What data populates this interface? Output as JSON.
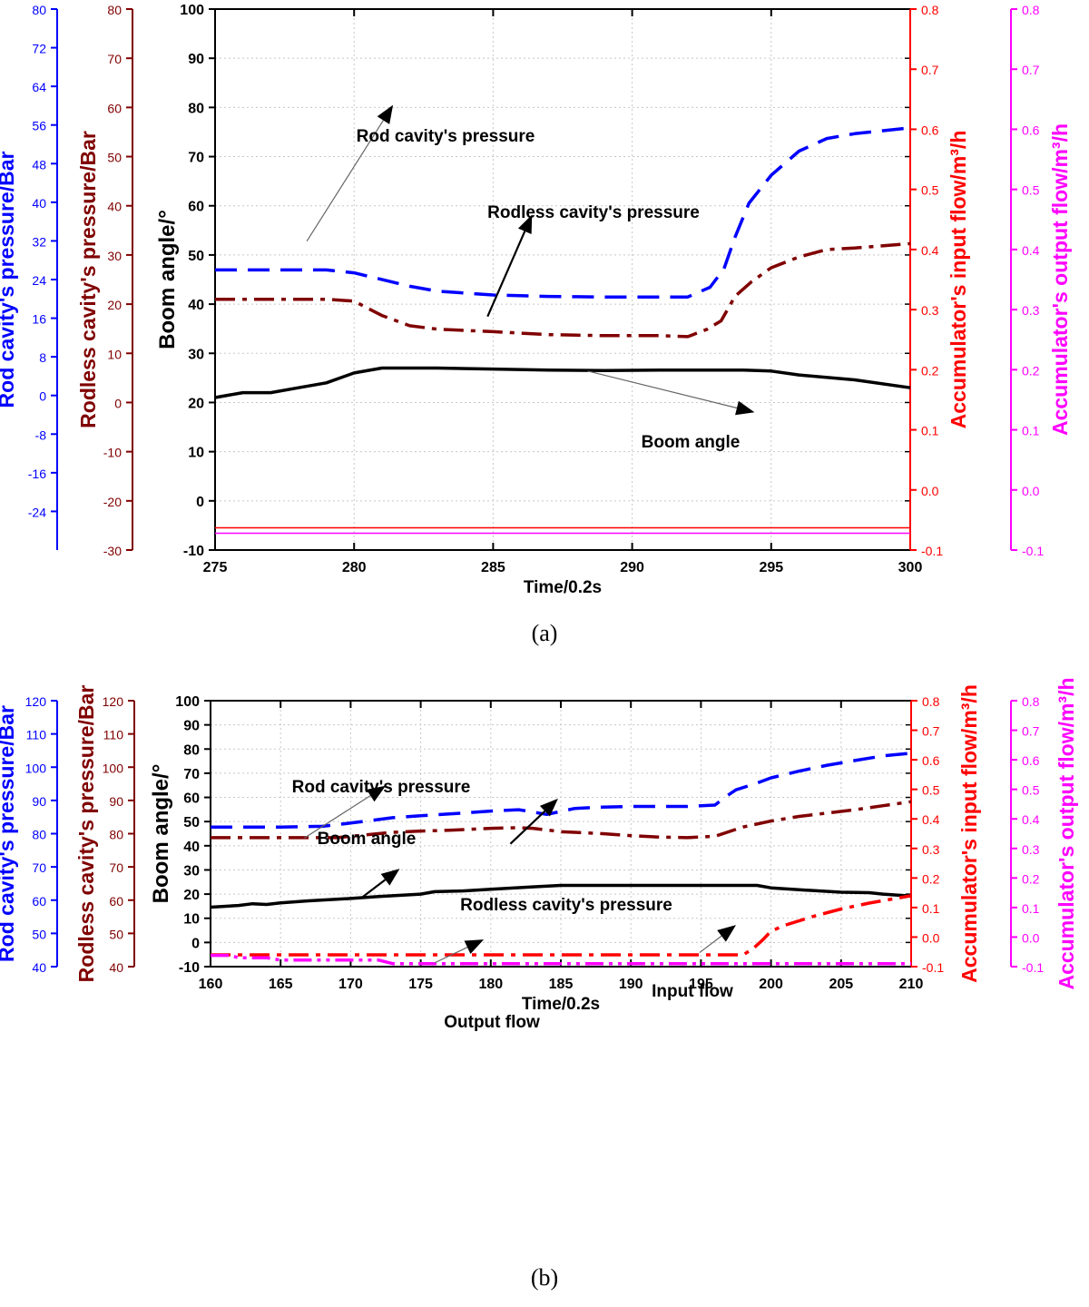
{
  "chart_data": [
    {
      "type": "line",
      "caption": "(a)",
      "xlabel": "Time/0.2s",
      "xlim": [
        275,
        300
      ],
      "xticks": [
        275,
        280,
        285,
        290,
        295,
        300
      ],
      "grid": true,
      "axes": {
        "rod": {
          "label": "Rod cavity's pressure/Bar",
          "color": "#0000ff",
          "ylim": [
            -32,
            80
          ],
          "ticks": [
            -24,
            -16,
            -8,
            0,
            8,
            16,
            24,
            32,
            40,
            48,
            56,
            64,
            72,
            80
          ],
          "tick_labels": [
            "-24",
            "-16",
            "-8",
            "0",
            "8",
            "16",
            "24",
            "32",
            "40",
            "48",
            "56",
            "64",
            "72",
            "80"
          ]
        },
        "rodless": {
          "label": "Rodless cavity's pressure/Bar",
          "color": "#800000",
          "ylim": [
            -30,
            80
          ],
          "ticks": [
            -30,
            -20,
            -10,
            0,
            10,
            20,
            30,
            40,
            50,
            60,
            70,
            80
          ],
          "tick_labels": [
            "-30",
            "-20",
            "-10",
            "0",
            "10",
            "20",
            "30",
            "40",
            "50",
            "60",
            "70",
            "80"
          ]
        },
        "boom": {
          "label": "Boom angle/°",
          "color": "#000000",
          "ylim": [
            -10,
            100
          ],
          "ticks": [
            -10,
            0,
            10,
            20,
            30,
            40,
            50,
            60,
            70,
            80,
            90,
            100
          ],
          "tick_labels": [
            "-10",
            "0",
            "10",
            "20",
            "30",
            "40",
            "50",
            "60",
            "70",
            "80",
            "90",
            "100"
          ]
        },
        "input": {
          "label": "Accumulator's input flow/m³/h",
          "color": "#ff0000",
          "ylim": [
            -0.1,
            0.8
          ],
          "ticks": [
            -0.1,
            0.0,
            0.1,
            0.2,
            0.3,
            0.4,
            0.5,
            0.6,
            0.7,
            0.8
          ],
          "tick_labels": [
            "-0.1",
            "0.0",
            "0.1",
            "0.2",
            "0.3",
            "0.4",
            "0.5",
            "0.6",
            "0.7",
            "0.8"
          ]
        },
        "output": {
          "label": "Accumulator's output flow/m³/h",
          "color": "#ff00ff",
          "ylim": [
            -0.1,
            0.8
          ],
          "ticks": [
            -0.1,
            0.0,
            0.1,
            0.2,
            0.3,
            0.4,
            0.5,
            0.6,
            0.7,
            0.8
          ],
          "tick_labels": [
            "-0.1",
            "0.0",
            "0.1",
            "0.2",
            "0.3",
            "0.4",
            "0.5",
            "0.6",
            "0.7",
            "0.8"
          ]
        }
      },
      "series": [
        {
          "axis": "rod",
          "color": "#0000ff",
          "style": "dash",
          "x": [
            275,
            277,
            279,
            280,
            282,
            283,
            285,
            287,
            289,
            290,
            291,
            292,
            292.8,
            293.3,
            293.7,
            294.2,
            295,
            296,
            297,
            298,
            300
          ],
          "y": [
            26,
            26,
            26,
            25.4,
            22.6,
            21.6,
            20.8,
            20.5,
            20.4,
            20.4,
            20.4,
            20.4,
            22.4,
            26.2,
            32.8,
            39.8,
            45.6,
            50.6,
            53.2,
            54.2,
            55.4
          ]
        },
        {
          "axis": "rodless",
          "color": "#800000",
          "style": "dashdot",
          "x": [
            275,
            277,
            279,
            280,
            281,
            282,
            283,
            285,
            287,
            289,
            291,
            292,
            292.7,
            293.2,
            293.7,
            294.3,
            295,
            296,
            297,
            298,
            300
          ],
          "y": [
            21,
            21,
            21,
            20.6,
            17.7,
            15.6,
            14.9,
            14.4,
            13.8,
            13.6,
            13.6,
            13.4,
            14.9,
            16.6,
            21.6,
            24.6,
            27.4,
            29.6,
            31.1,
            31.4,
            32.3
          ]
        },
        {
          "axis": "boom",
          "color": "#000000",
          "style": "solid",
          "x": [
            275,
            276,
            277,
            278,
            279,
            280,
            281,
            283,
            285,
            287,
            289,
            291,
            293,
            294,
            295,
            296,
            298,
            300
          ],
          "y": [
            21,
            22,
            22,
            23,
            24,
            26,
            27,
            27,
            26.8,
            26.6,
            26.5,
            26.6,
            26.6,
            26.6,
            26.4,
            25.6,
            24.6,
            23
          ]
        },
        {
          "axis": "input",
          "color": "#ff0000",
          "style": "solid",
          "x": [
            275,
            300
          ],
          "y": [
            -0.063,
            -0.063
          ]
        },
        {
          "axis": "output",
          "color": "#ff00ff",
          "style": "solid",
          "x": [
            275,
            300
          ],
          "y": [
            -0.072,
            -0.072
          ]
        }
      ],
      "annotations": [
        {
          "text": "Rod cavity's pressure",
          "series": 0,
          "tip": [
            281.4,
            80.5
          ],
          "from": [
            278.3,
            52.8
          ]
        },
        {
          "text": "Rodless cavity's pressure",
          "series": 1,
          "tip": [
            286.4,
            58.2
          ],
          "from": [
            284.8,
            37.5
          ]
        },
        {
          "text": "Boom angle",
          "series": 2,
          "tip": [
            294.4,
            18
          ],
          "from": [
            288.4,
            26.4
          ]
        }
      ]
    },
    {
      "type": "line",
      "caption": "(b)",
      "xlabel": "Time/0.2s",
      "xlim": [
        160,
        210
      ],
      "xticks": [
        160,
        165,
        170,
        175,
        180,
        185,
        190,
        195,
        200,
        205,
        210
      ],
      "grid": true,
      "axes": {
        "rod": {
          "label": "Rod cavity's pressure/Bar",
          "color": "#0000ff",
          "ylim": [
            40,
            120
          ],
          "ticks": [
            40,
            50,
            60,
            70,
            80,
            90,
            100,
            110,
            120
          ],
          "tick_labels": [
            "40",
            "50",
            "60",
            "70",
            "80",
            "90",
            "100",
            "110",
            "120"
          ]
        },
        "rodless": {
          "label": "Rodless cavity's pressure/Bar",
          "color": "#800000",
          "ylim": [
            40,
            120
          ],
          "ticks": [
            40,
            50,
            60,
            70,
            80,
            90,
            100,
            110,
            120
          ],
          "tick_labels": [
            "40",
            "50",
            "60",
            "70",
            "80",
            "90",
            "100",
            "110",
            "120"
          ]
        },
        "boom": {
          "label": "Boom angle/°",
          "color": "#000000",
          "ylim": [
            -10,
            100
          ],
          "ticks": [
            -10,
            0,
            10,
            20,
            30,
            40,
            50,
            60,
            70,
            80,
            90,
            100
          ],
          "tick_labels": [
            "-10",
            "0",
            "10",
            "20",
            "30",
            "40",
            "50",
            "60",
            "70",
            "80",
            "90",
            "100"
          ]
        },
        "input": {
          "label": "Accumulator's input flow/m³/h",
          "color": "#ff0000",
          "ylim": [
            -0.1,
            0.8
          ],
          "ticks": [
            -0.1,
            0.0,
            0.1,
            0.2,
            0.3,
            0.4,
            0.5,
            0.6,
            0.7,
            0.8
          ],
          "tick_labels": [
            "-0.1",
            "0.0",
            "0.1",
            "0.2",
            "0.3",
            "0.4",
            "0.5",
            "0.6",
            "0.7",
            "0.8"
          ]
        },
        "output": {
          "label": "Accumulator's output flow/m³/h",
          "color": "#ff00ff",
          "ylim": [
            -0.1,
            0.8
          ],
          "ticks": [
            -0.1,
            0.0,
            0.1,
            0.2,
            0.3,
            0.4,
            0.5,
            0.6,
            0.7,
            0.8
          ],
          "tick_labels": [
            "-0.1",
            "0.0",
            "0.1",
            "0.2",
            "0.3",
            "0.4",
            "0.5",
            "0.6",
            "0.7",
            "0.8"
          ]
        }
      },
      "series": [
        {
          "axis": "rod",
          "color": "#0000ff",
          "style": "dash",
          "x": [
            160,
            162,
            165,
            168,
            170,
            173,
            175,
            178,
            180,
            182,
            184,
            186,
            188,
            190,
            192,
            194,
            196,
            196.8,
            197.5,
            199,
            200,
            202,
            204,
            206,
            208,
            210
          ],
          "y": [
            82,
            82,
            82,
            82.2,
            83.2,
            84.8,
            85.4,
            86.2,
            86.8,
            87.2,
            85.8,
            87.6,
            88,
            88.2,
            88.2,
            88.2,
            88.6,
            91.2,
            93.2,
            95.2,
            96.8,
            98.8,
            100.6,
            102,
            103.4,
            104.2
          ]
        },
        {
          "axis": "rodless",
          "color": "#800000",
          "style": "dashdot",
          "x": [
            160,
            163,
            166,
            169,
            171,
            173,
            175,
            177,
            180,
            182,
            183,
            185,
            188,
            190,
            192,
            194,
            196,
            198,
            200,
            202,
            204,
            206,
            208,
            210
          ],
          "y": [
            78.8,
            78.8,
            78.8,
            78.8,
            79.6,
            80.4,
            80.8,
            81,
            81.6,
            81.8,
            81.6,
            80.6,
            80,
            79.4,
            79,
            78.8,
            79.2,
            82,
            83.8,
            85.2,
            86.2,
            87.2,
            88.4,
            89.6
          ]
        },
        {
          "axis": "boom",
          "color": "#000000",
          "style": "solid",
          "x": [
            160,
            162,
            163,
            164,
            165,
            167,
            170,
            172,
            175,
            176,
            178,
            180,
            183,
            185,
            190,
            195,
            197,
            199,
            200,
            202,
            205,
            207,
            208,
            210
          ],
          "y": [
            14.6,
            15.3,
            16,
            15.7,
            16.4,
            17.2,
            18.2,
            19,
            20,
            21,
            21.3,
            22,
            23,
            23.6,
            23.6,
            23.6,
            23.6,
            23.6,
            22.6,
            21.8,
            20.8,
            20.6,
            20,
            19.2
          ]
        },
        {
          "axis": "input",
          "color": "#ff0000",
          "style": "dashdot",
          "x": [
            160,
            170,
            180,
            190,
            197,
            198,
            198.7,
            199.4,
            200,
            201,
            203,
            205,
            207,
            210
          ],
          "y": [
            -0.06,
            -0.06,
            -0.06,
            -0.06,
            -0.06,
            -0.06,
            -0.04,
            -0.01,
            0.02,
            0.04,
            0.07,
            0.095,
            0.115,
            0.14
          ]
        },
        {
          "axis": "output",
          "color": "#ff00ff",
          "style": "dashdotdot",
          "x": [
            160,
            161.4,
            162,
            164,
            165,
            166,
            170,
            172,
            173,
            175,
            180,
            190,
            200,
            210
          ],
          "y": [
            -0.062,
            -0.062,
            -0.07,
            -0.07,
            -0.078,
            -0.078,
            -0.078,
            -0.078,
            -0.09,
            -0.09,
            -0.09,
            -0.09,
            -0.09,
            -0.09
          ]
        }
      ],
      "annotations": [
        {
          "text": "Rod cavity's pressure",
          "series": 0,
          "tip": [
            172.5,
            64.8
          ],
          "from": [
            166.7,
            43.2
          ]
        },
        {
          "text": "Rodless cavity's pressure",
          "series": 1,
          "tip": [
            184.8,
            59.5
          ],
          "from": [
            181.4,
            40.8
          ]
        },
        {
          "text": "Boom angle",
          "series": 2,
          "tip": [
            173.5,
            30.5
          ],
          "from": [
            170.8,
            18.6
          ]
        },
        {
          "text": "Output flow",
          "series": 4,
          "tip": [
            179.5,
            1.2
          ],
          "from": [
            176,
            -8.4
          ]
        },
        {
          "text": "Input flow",
          "series": 3,
          "tip": [
            197.5,
            7.2
          ],
          "from": [
            194.9,
            -4.2
          ]
        }
      ]
    }
  ]
}
